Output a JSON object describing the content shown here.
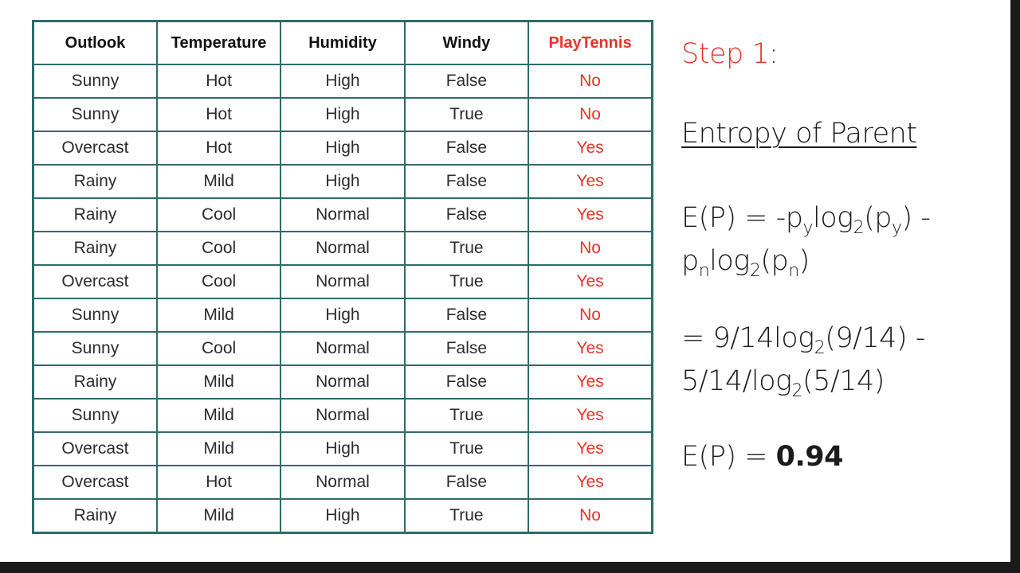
{
  "table": {
    "headers": [
      "Outlook",
      "Temperature",
      "Humidity",
      "Windy",
      "PlayTennis"
    ],
    "rows": [
      [
        "Sunny",
        "Hot",
        "High",
        "False",
        "No"
      ],
      [
        "Sunny",
        "Hot",
        "High",
        "True",
        "No"
      ],
      [
        "Overcast",
        "Hot",
        "High",
        "False",
        "Yes"
      ],
      [
        "Rainy",
        "Mild",
        "High",
        "False",
        "Yes"
      ],
      [
        "Rainy",
        "Cool",
        "Normal",
        "False",
        "Yes"
      ],
      [
        "Rainy",
        "Cool",
        "Normal",
        "True",
        "No"
      ],
      [
        "Overcast",
        "Cool",
        "Normal",
        "True",
        "Yes"
      ],
      [
        "Sunny",
        "Mild",
        "High",
        "False",
        "No"
      ],
      [
        "Sunny",
        "Cool",
        "Normal",
        "False",
        "Yes"
      ],
      [
        "Rainy",
        "Mild",
        "Normal",
        "False",
        "Yes"
      ],
      [
        "Sunny",
        "Mild",
        "Normal",
        "True",
        "Yes"
      ],
      [
        "Overcast",
        "Mild",
        "High",
        "True",
        "Yes"
      ],
      [
        "Overcast",
        "Hot",
        "Normal",
        "False",
        "Yes"
      ],
      [
        "Rainy",
        "Mild",
        "High",
        "True",
        "No"
      ]
    ]
  },
  "step": {
    "label": "Step 1",
    "colon": ":"
  },
  "section_title": "Entropy of Parent",
  "formula": {
    "line1a": "E(P) = -p",
    "sub_y": "y",
    "log": "log",
    "sub_2": "2",
    "open_p": "(p",
    "close_minus": ") -",
    "line2_p": "p",
    "sub_n": "n",
    "close": ")",
    "num_line1a": "= 9/14log",
    "num_line1b": "(9/14) -",
    "num_line2a": "5/14/log",
    "num_line2b": "(5/14)",
    "result_label": "E(P) = ",
    "result_value": "0.94"
  },
  "colors": {
    "border": "#2f6b6a",
    "accent_red": "#e8332a",
    "text": "#1b1b1b",
    "frame": "#1a1a1a"
  }
}
